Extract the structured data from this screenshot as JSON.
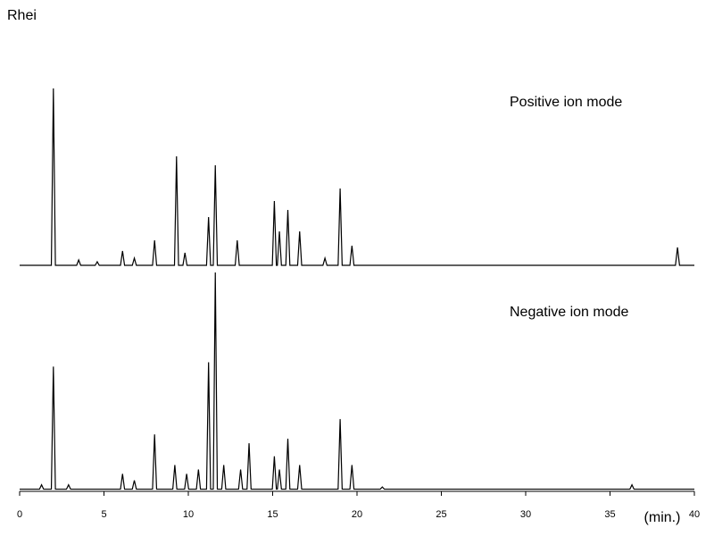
{
  "chart_data": [
    {
      "type": "line",
      "ylabel": "Rhei",
      "title": "Positive ion mode",
      "color": "#000000",
      "xlim": [
        0,
        40
      ],
      "ylim": [
        0,
        100
      ],
      "x": [
        0,
        1.88,
        2.0,
        2.12,
        3.38,
        3.5,
        3.62,
        4.48,
        4.6,
        4.72,
        5.98,
        6.1,
        6.22,
        6.68,
        6.8,
        6.92,
        7.88,
        8.0,
        8.12,
        9.18,
        9.3,
        9.42,
        9.68,
        9.8,
        9.92,
        11.08,
        11.2,
        11.32,
        11.48,
        11.6,
        11.72,
        12.78,
        12.9,
        13.02,
        14.98,
        15.1,
        15.22,
        15.28,
        15.4,
        15.52,
        15.78,
        15.9,
        16.02,
        16.48,
        16.6,
        16.72,
        17.98,
        18.1,
        18.22,
        18.88,
        19.0,
        19.12,
        19.58,
        19.7,
        19.82,
        38.88,
        39.0,
        39.12,
        40
      ],
      "values": [
        1,
        1,
        100,
        1,
        1,
        4,
        1,
        1,
        3,
        1,
        1,
        9,
        1,
        1,
        5,
        1,
        1,
        15,
        1,
        1,
        62,
        1,
        1,
        8,
        1,
        1,
        28,
        1,
        1,
        57,
        1,
        1,
        15,
        1,
        1,
        37,
        1,
        1,
        20,
        1,
        1,
        32,
        1,
        1,
        20,
        1,
        1,
        5,
        1,
        1,
        44,
        1,
        1,
        12,
        1,
        1,
        11,
        1,
        1
      ]
    },
    {
      "type": "line",
      "title": "Negative ion mode",
      "xlabel": "(min.)",
      "color": "#000000",
      "xlim": [
        0,
        40
      ],
      "ylim": [
        0,
        100
      ],
      "xticks": [
        0,
        5,
        10,
        15,
        20,
        25,
        30,
        35,
        40
      ],
      "x": [
        0,
        1.18,
        1.3,
        1.42,
        1.88,
        2.0,
        2.12,
        2.78,
        2.9,
        3.02,
        5.98,
        6.1,
        6.22,
        6.68,
        6.8,
        6.92,
        7.88,
        8.0,
        8.12,
        9.08,
        9.2,
        9.32,
        9.78,
        9.9,
        10.02,
        10.48,
        10.6,
        10.72,
        11.08,
        11.2,
        11.32,
        11.48,
        11.6,
        11.72,
        11.98,
        12.1,
        12.22,
        12.98,
        13.1,
        13.22,
        13.48,
        13.6,
        13.72,
        14.98,
        15.1,
        15.22,
        15.28,
        15.4,
        15.52,
        15.78,
        15.9,
        16.02,
        16.48,
        16.6,
        16.72,
        18.88,
        19.0,
        19.12,
        19.58,
        19.7,
        19.82,
        21.38,
        21.5,
        21.62,
        36.18,
        36.3,
        36.42,
        40
      ],
      "values": [
        1,
        1,
        3,
        1,
        1,
        57,
        1,
        1,
        3,
        1,
        1,
        8,
        1,
        1,
        5,
        1,
        1,
        26,
        1,
        1,
        12,
        1,
        1,
        8,
        1,
        1,
        10,
        1,
        1,
        59,
        1,
        1,
        100,
        1,
        1,
        12,
        1,
        1,
        10,
        1,
        1,
        22,
        1,
        1,
        16,
        1,
        1,
        10,
        1,
        1,
        24,
        1,
        1,
        12,
        1,
        1,
        33,
        1,
        1,
        12,
        1,
        1,
        2,
        1,
        1,
        3,
        1,
        1
      ]
    }
  ]
}
